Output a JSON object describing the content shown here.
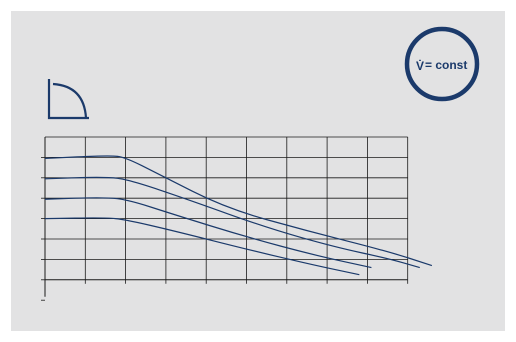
{
  "badge": {
    "symbol": "V̇",
    "text": "= const"
  },
  "colors": {
    "ink": "#1b3a6b",
    "grid": "#1a1a1a",
    "panel": "#e2e2e3",
    "page": "#ffffff"
  },
  "icons": {
    "mode_symbol": "quarter-circle-control-mode-icon",
    "badge_ring": "circle-badge-icon"
  },
  "chart_data": {
    "type": "line",
    "title": "",
    "xlabel": "",
    "ylabel": "",
    "grid": true,
    "grid_columns": 9,
    "grid_rows": 7,
    "series": [
      {
        "points": [
          [
            0,
            5.95
          ],
          [
            1.6,
            6.1
          ],
          [
            2,
            6
          ],
          [
            2.8,
            5.2
          ],
          [
            4.5,
            3.5
          ],
          [
            6.5,
            2.4
          ],
          [
            8.5,
            1.4
          ],
          [
            9.6,
            0.7
          ]
        ]
      },
      {
        "points": [
          [
            0,
            4.95
          ],
          [
            1.5,
            5.05
          ],
          [
            2.1,
            4.9
          ],
          [
            3.6,
            3.9
          ],
          [
            5.5,
            2.55
          ],
          [
            7.2,
            1.6
          ],
          [
            8.5,
            1.05
          ],
          [
            9.3,
            0.6
          ]
        ]
      },
      {
        "points": [
          [
            0,
            3.95
          ],
          [
            1.5,
            4.05
          ],
          [
            2.1,
            3.9
          ],
          [
            3.2,
            3.2
          ],
          [
            5,
            2.1
          ],
          [
            6.7,
            1.2
          ],
          [
            8.1,
            0.6
          ]
        ]
      },
      {
        "points": [
          [
            0,
            3.0
          ],
          [
            1.5,
            3.05
          ],
          [
            2,
            2.95
          ],
          [
            3.2,
            2.4
          ],
          [
            5,
            1.5
          ],
          [
            6.6,
            0.75
          ],
          [
            7.8,
            0.25
          ]
        ]
      }
    ]
  }
}
